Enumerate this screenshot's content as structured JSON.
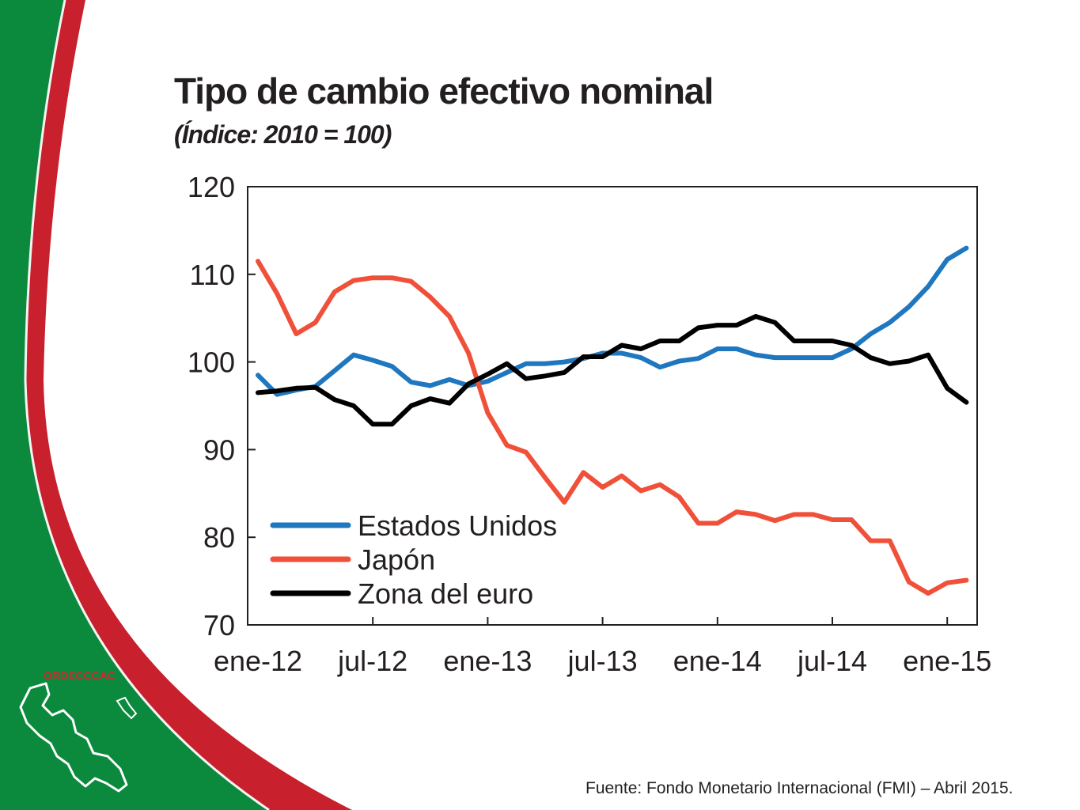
{
  "slide": {
    "logo_text": "ORDECCCAC",
    "source": "Fuente: Fondo Monetario Internacional (FMI) – Abril 2015.",
    "colors": {
      "green": "#0b8a3e",
      "red": "#c8202c",
      "background": "#ffffff"
    }
  },
  "chart_data": {
    "type": "line",
    "title": "Tipo de cambio efectivo nominal",
    "subtitle": "(Índice: 2010 = 100)",
    "ylim": [
      70,
      120
    ],
    "yticks": [
      "70",
      "80",
      "90",
      "100",
      "110",
      "120"
    ],
    "xlabels": [
      "ene-12",
      "jul-12",
      "ene-13",
      "jul-13",
      "ene-14",
      "jul-14",
      "ene-15"
    ],
    "grid": false,
    "legend_position": "bottom-left",
    "series": [
      {
        "name": "Estados Unidos",
        "color": "#1f77bf",
        "values": [
          98.5,
          96.3,
          96.8,
          97.2,
          99.0,
          100.8,
          100.2,
          99.5,
          97.7,
          97.3,
          98.0,
          97.3,
          97.8,
          98.8,
          99.8,
          99.8,
          100.0,
          100.4,
          101.0,
          101.0,
          100.5,
          99.4,
          100.1,
          100.4,
          101.5,
          101.5,
          100.8,
          100.5,
          100.5,
          100.5,
          100.5,
          101.5,
          103.2,
          104.5,
          106.3,
          108.6,
          111.7,
          113.0
        ]
      },
      {
        "name": "Japón",
        "color": "#f0503a",
        "values": [
          111.5,
          107.8,
          103.2,
          104.5,
          108.0,
          109.3,
          109.6,
          109.6,
          109.2,
          107.4,
          105.2,
          101.0,
          94.2,
          90.5,
          89.7,
          86.8,
          84.0,
          87.4,
          85.7,
          87.0,
          85.3,
          86.0,
          84.6,
          81.6,
          81.6,
          82.9,
          82.6,
          81.9,
          82.6,
          82.6,
          82.0,
          82.0,
          79.6,
          79.6,
          74.9,
          73.6,
          74.8,
          75.1
        ]
      },
      {
        "name": "Zona del euro",
        "color": "#000000",
        "values": [
          96.5,
          96.7,
          97.0,
          97.1,
          95.7,
          95.0,
          92.9,
          92.9,
          95.0,
          95.8,
          95.3,
          97.5,
          98.6,
          99.8,
          98.1,
          98.4,
          98.8,
          100.6,
          100.6,
          101.9,
          101.5,
          102.4,
          102.4,
          103.9,
          104.2,
          104.2,
          105.2,
          104.5,
          102.4,
          102.4,
          102.4,
          101.9,
          100.5,
          99.8,
          100.1,
          100.8,
          97.0,
          95.4
        ]
      }
    ]
  }
}
